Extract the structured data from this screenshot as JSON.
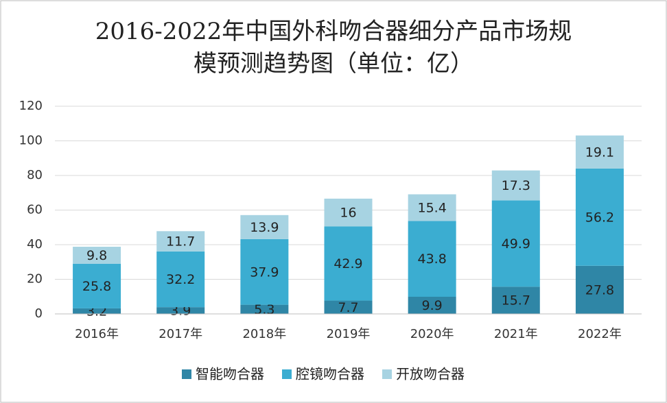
{
  "chart_data": {
    "type": "stacked_bar",
    "title": [
      "2016-2022年中国外科吻合器细分产品市场规",
      "模预测趋势图（单位：亿）"
    ],
    "categories": [
      "2016年",
      "2017年",
      "2018年",
      "2019年",
      "2020年",
      "2021年",
      "2022年"
    ],
    "series": [
      {
        "name": "智能吻合器",
        "color": "#2f86a6",
        "values": [
          3.2,
          3.9,
          5.3,
          7.7,
          9.9,
          15.7,
          27.8
        ]
      },
      {
        "name": "腔镜吻合器",
        "color": "#3badd1",
        "values": [
          25.8,
          32.2,
          37.9,
          42.9,
          43.8,
          49.9,
          56.2
        ]
      },
      {
        "name": "开放吻合器",
        "color": "#a7d3e2",
        "values": [
          9.8,
          11.7,
          13.9,
          16,
          15.4,
          17.3,
          19.1
        ]
      }
    ],
    "ylim": [
      0,
      120
    ],
    "yticks": [
      0,
      20,
      40,
      60,
      80,
      100,
      120
    ],
    "grid": true,
    "legend": "bottom"
  }
}
